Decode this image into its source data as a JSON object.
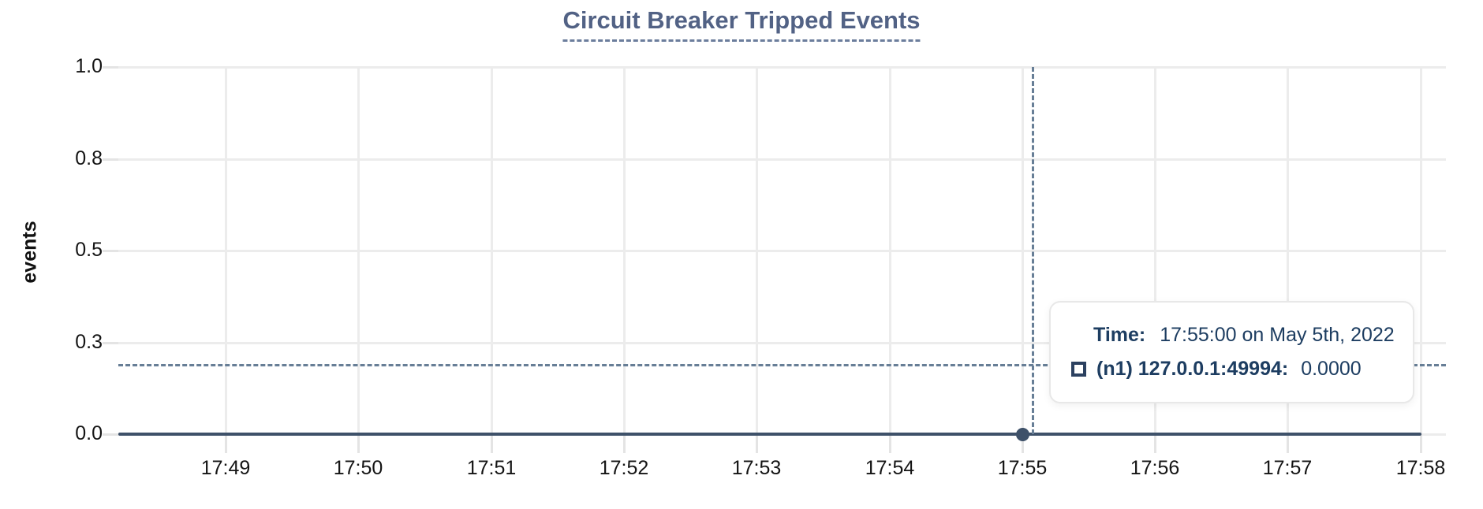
{
  "page": {
    "background": "#ffffff"
  },
  "chart_data": {
    "type": "line",
    "title": "Circuit Breaker Tripped Events",
    "xlabel": "",
    "ylabel": "events",
    "x_ticks": [
      "17:49",
      "17:50",
      "17:51",
      "17:52",
      "17:53",
      "17:54",
      "17:55",
      "17:56",
      "17:57",
      "17:58"
    ],
    "y_ticks": [
      "1.0",
      "0.8",
      "0.5",
      "0.3",
      "0.0"
    ],
    "ylim": [
      0.0,
      1.0
    ],
    "grid": true,
    "legend_position": "tooltip",
    "series": [
      {
        "name": "(n1) 127.0.0.1:49994",
        "color": "#3e5169",
        "x": [
          "17:49",
          "17:50",
          "17:51",
          "17:52",
          "17:53",
          "17:54",
          "17:55",
          "17:56",
          "17:57",
          "17:58"
        ],
        "values": [
          0,
          0,
          0,
          0,
          0,
          0,
          0,
          0,
          0,
          0
        ]
      }
    ],
    "cursor": {
      "hover_x": "17:55",
      "snapped_point": {
        "x": "17:55:00",
        "y": 0.0
      }
    }
  },
  "tooltip": {
    "time_label": "Time:",
    "time_value": "17:55:00 on May 5th, 2022",
    "series_marker": "square-outline-icon",
    "series_label": "(n1) 127.0.0.1:49994:",
    "series_value": "0.0000"
  },
  "colors": {
    "title": "#526285",
    "series": "#3e5169",
    "crosshair": "#677e96",
    "gridline": "#ececec",
    "tick_label": "#141414",
    "tooltip_text": "#1d3d61",
    "tooltip_border": "#e8e8e8"
  }
}
